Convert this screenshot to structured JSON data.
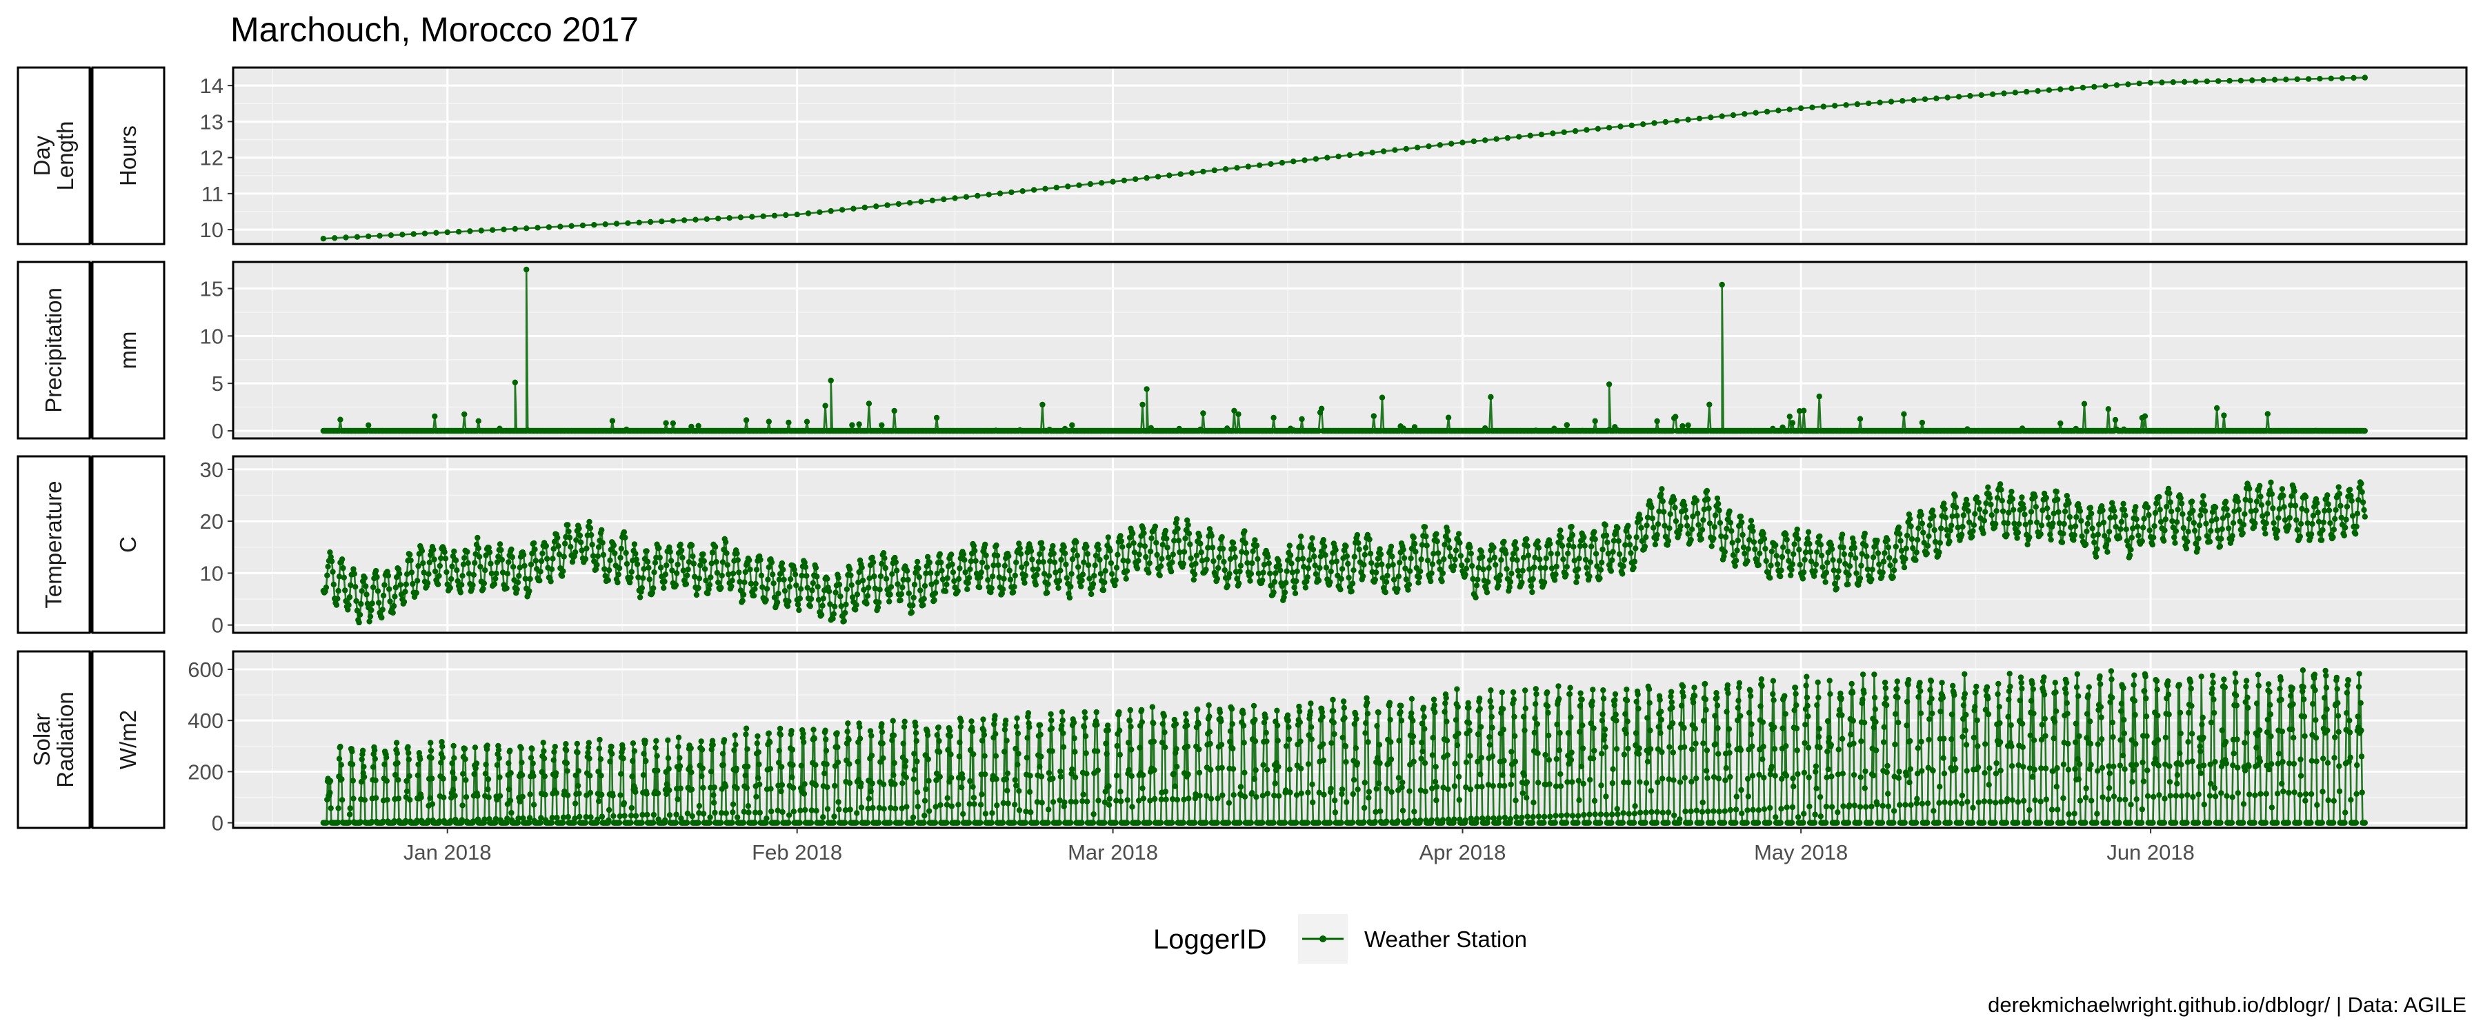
{
  "title": "Marchouch, Morocco 2017",
  "caption": "derekmichaelwright.github.io/dblogr/ | Data: AGILE",
  "legend": {
    "title": "LoggerID",
    "entry": "Weather Station"
  },
  "colors": {
    "series": "#006400",
    "panel_bg": "#ebebeb",
    "strip_bg": "#ffffff",
    "border": "#000000"
  },
  "chart_data": {
    "type": "line",
    "x_axis": {
      "type": "date",
      "range": [
        "2017-12-13",
        "2018-06-29"
      ],
      "ticks": [
        {
          "date": "2018-01-01",
          "label": "Jan 2018"
        },
        {
          "date": "2018-02-01",
          "label": "Feb 2018"
        },
        {
          "date": "2018-03-01",
          "label": "Mar 2018"
        },
        {
          "date": "2018-04-01",
          "label": "Apr 2018"
        },
        {
          "date": "2018-05-01",
          "label": "May 2018"
        },
        {
          "date": "2018-06-01",
          "label": "Jun 2018"
        }
      ]
    },
    "series_name": "Weather Station",
    "data_start": "2017-12-21",
    "data_end": "2018-06-20",
    "panels": [
      {
        "strip1": [
          "Day",
          "Length"
        ],
        "strip2": "Hours",
        "ylim": [
          9.6,
          14.5
        ],
        "yticks": [
          10,
          11,
          12,
          13,
          14
        ],
        "kind": "daylength",
        "anchors": [
          [
            "2017-12-21",
            9.75
          ],
          [
            "2018-02-01",
            10.42
          ],
          [
            "2018-03-01",
            11.33
          ],
          [
            "2018-04-01",
            12.42
          ],
          [
            "2018-05-01",
            13.37
          ],
          [
            "2018-06-01",
            14.08
          ],
          [
            "2018-06-20",
            14.22
          ]
        ]
      },
      {
        "strip1": [
          "Precipitation"
        ],
        "strip2": "mm",
        "ylim": [
          -0.8,
          17.8
        ],
        "yticks": [
          0,
          5,
          10,
          15
        ],
        "kind": "precip",
        "peaks": [
          [
            "2018-01-08",
            17.0
          ],
          [
            "2018-04-24",
            15.4
          ],
          [
            "2018-01-07",
            5.1
          ],
          [
            "2018-02-04",
            5.3
          ],
          [
            "2018-03-04",
            4.4
          ],
          [
            "2018-04-14",
            4.9
          ]
        ]
      },
      {
        "strip1": [
          "Temperature"
        ],
        "strip2": "C",
        "ylim": [
          -1.5,
          32.5
        ],
        "yticks": [
          0,
          10,
          20,
          30
        ],
        "kind": "temperature",
        "anchors": [
          [
            "2017-12-21",
            9
          ],
          [
            "2018-01-01",
            13
          ],
          [
            "2018-01-20",
            11
          ],
          [
            "2018-02-05",
            6
          ],
          [
            "2018-02-20",
            11
          ],
          [
            "2018-03-10",
            14
          ],
          [
            "2018-03-25",
            10
          ],
          [
            "2018-04-15",
            13
          ],
          [
            "2018-04-20",
            19
          ],
          [
            "2018-05-01",
            13
          ],
          [
            "2018-05-20",
            18
          ],
          [
            "2018-06-20",
            21
          ]
        ]
      },
      {
        "strip1": [
          "Solar",
          "Radiation"
        ],
        "strip2": "W/m2",
        "ylim": [
          -20,
          670
        ],
        "yticks": [
          0,
          200,
          400,
          600
        ],
        "kind": "solar",
        "anchors": [
          [
            "2017-12-21",
            310
          ],
          [
            "2018-01-15",
            330
          ],
          [
            "2018-02-15",
            430
          ],
          [
            "2018-03-15",
            480
          ],
          [
            "2018-04-15",
            560
          ],
          [
            "2018-05-15",
            590
          ],
          [
            "2018-06-20",
            600
          ]
        ]
      }
    ]
  }
}
